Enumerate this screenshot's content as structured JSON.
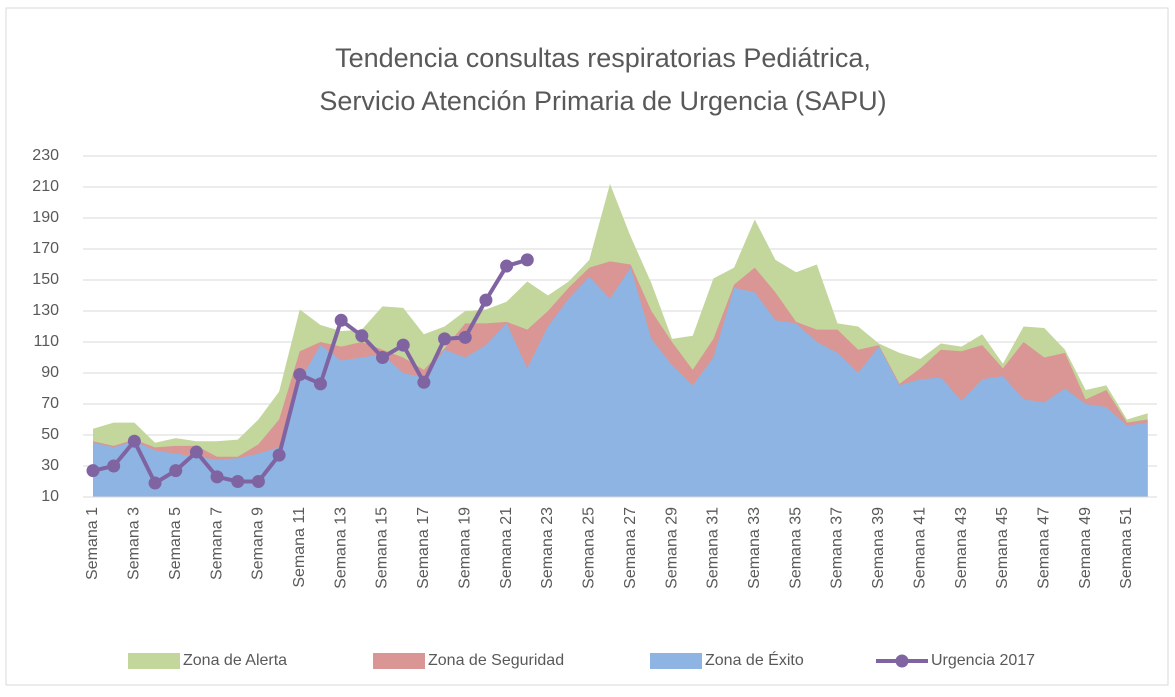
{
  "chart_data": {
    "type": "area",
    "title": [
      "Tendencia consultas respiratorias Pediátrica,",
      "Servicio Atención Primaria de Urgencia (SAPU)"
    ],
    "categories": [
      "Semana 1",
      null,
      "Semana 3",
      null,
      "Semana 5",
      null,
      "Semana 7",
      null,
      "Semana 9",
      null,
      "Semana 11",
      null,
      "Semana 13",
      null,
      "Semana 15",
      null,
      "Semana 17",
      null,
      "Semana 19",
      null,
      "Semana 21",
      null,
      "Semana 23",
      null,
      "Semana 25",
      null,
      "Semana 27",
      null,
      "Semana 29",
      null,
      "Semana 31",
      null,
      "Semana 33",
      null,
      "Semana 35",
      null,
      "Semana 37",
      null,
      "Semana 39",
      null,
      "Semana 41",
      null,
      "Semana 43",
      null,
      "Semana 45",
      null,
      "Semana 47",
      null,
      "Semana 49",
      null,
      "Semana 51",
      null
    ],
    "series": [
      {
        "name": "Zona de Alerta",
        "type": "area",
        "color": "#c3d69b",
        "values": [
          54,
          58,
          58,
          45,
          48,
          46,
          46,
          47,
          60,
          78,
          131,
          121,
          117,
          118,
          133,
          132,
          115,
          120,
          130,
          131,
          136,
          149,
          140,
          149,
          163,
          212,
          178,
          148,
          112,
          114,
          151,
          158,
          189,
          163,
          155,
          160,
          122,
          120,
          109,
          103,
          99,
          109,
          107,
          115,
          96,
          120,
          119,
          105,
          79,
          82,
          60,
          64
        ]
      },
      {
        "name": "Zona de Seguridad",
        "type": "area",
        "color": "#d99694",
        "values": [
          46,
          43,
          47,
          42,
          43,
          43,
          36,
          36,
          44,
          60,
          104,
          110,
          107,
          110,
          105,
          100,
          92,
          106,
          122,
          122,
          123,
          118,
          130,
          145,
          158,
          162,
          160,
          130,
          110,
          92,
          112,
          147,
          158,
          142,
          123,
          118,
          118,
          105,
          108,
          83,
          93,
          105,
          104,
          108,
          93,
          110,
          100,
          103,
          73,
          79,
          58,
          60
        ]
      },
      {
        "name": "Zona de Éxito",
        "type": "area",
        "color": "#8eb4e3",
        "values": [
          45,
          42,
          46,
          40,
          38,
          36,
          34,
          35,
          38,
          42,
          85,
          108,
          98,
          100,
          102,
          90,
          87,
          105,
          100,
          108,
          122,
          93,
          120,
          138,
          152,
          138,
          158,
          112,
          95,
          82,
          100,
          145,
          142,
          124,
          122,
          110,
          103,
          90,
          107,
          82,
          86,
          87,
          72,
          86,
          88,
          73,
          71,
          80,
          70,
          68,
          56,
          58
        ]
      },
      {
        "name": "Urgencia 2017",
        "type": "line",
        "color": "#8064a2",
        "values": [
          27,
          30,
          46,
          19,
          27,
          39,
          23,
          20,
          20,
          37,
          89,
          83,
          124,
          114,
          100,
          108,
          84,
          112,
          113,
          137,
          159,
          163,
          null,
          null,
          null,
          null,
          null,
          null,
          null,
          null,
          null,
          null,
          null,
          null,
          null,
          null,
          null,
          null,
          null,
          null,
          null,
          null,
          null,
          null,
          null,
          null,
          null,
          null,
          null,
          null,
          null,
          null
        ]
      }
    ],
    "ylim": [
      10,
      230
    ],
    "yticks": [
      10,
      30,
      50,
      70,
      90,
      110,
      130,
      150,
      170,
      190,
      210,
      230
    ],
    "grid": true,
    "legend": "bottom"
  }
}
